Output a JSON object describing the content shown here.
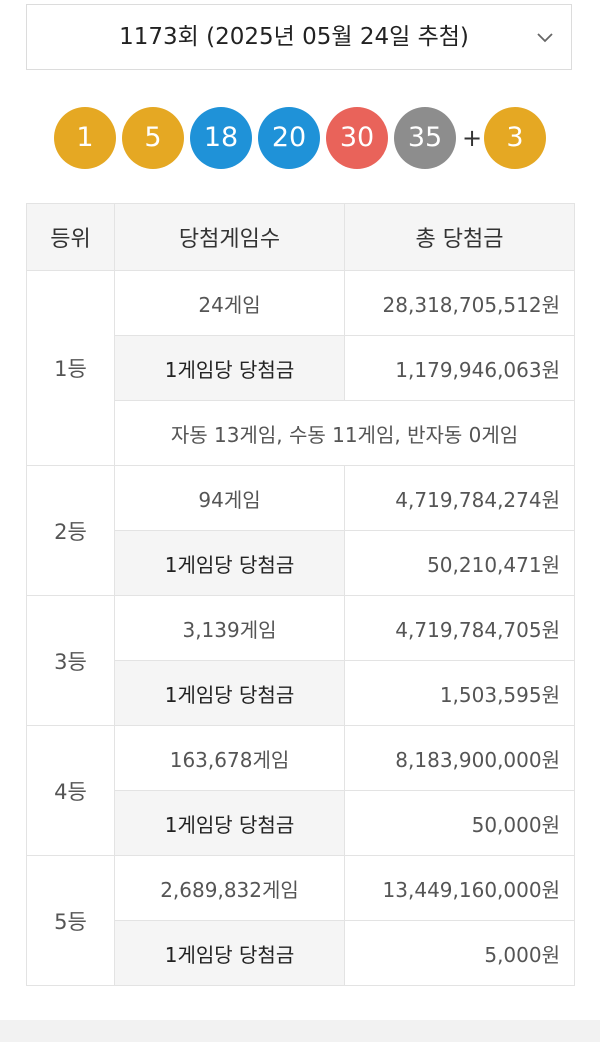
{
  "round_selector": {
    "label": "1173회 (2025년 05월 24일 추첨)",
    "chevron": "chevron-down-icon"
  },
  "balls": [
    {
      "number": "1",
      "color": "#e5a823"
    },
    {
      "number": "5",
      "color": "#e5a823"
    },
    {
      "number": "18",
      "color": "#1f92d8"
    },
    {
      "number": "20",
      "color": "#1f92d8"
    },
    {
      "number": "30",
      "color": "#e9635a"
    },
    {
      "number": "35",
      "color": "#8d8d8d"
    }
  ],
  "plus_sign": "+",
  "bonus_ball": {
    "number": "3",
    "color": "#e5a823"
  },
  "table": {
    "headers": [
      "등위",
      "당첨게임수",
      "총 당첨금"
    ],
    "rows": [
      {
        "rank": "1등",
        "games": "24게임",
        "total": "28,318,705,512원",
        "per_label": "1게임당 당첨금",
        "per_value": "1,179,946,063원",
        "note": "자동 13게임, 수동 11게임, 반자동 0게임"
      },
      {
        "rank": "2등",
        "games": "94게임",
        "total": "4,719,784,274원",
        "per_label": "1게임당 당첨금",
        "per_value": "50,210,471원"
      },
      {
        "rank": "3등",
        "games": "3,139게임",
        "total": "4,719,784,705원",
        "per_label": "1게임당 당첨금",
        "per_value": "1,503,595원"
      },
      {
        "rank": "4등",
        "games": "163,678게임",
        "total": "8,183,900,000원",
        "per_label": "1게임당 당첨금",
        "per_value": "50,000원"
      },
      {
        "rank": "5등",
        "games": "2,689,832게임",
        "total": "13,449,160,000원",
        "per_label": "1게임당 당첨금",
        "per_value": "5,000원"
      }
    ]
  }
}
